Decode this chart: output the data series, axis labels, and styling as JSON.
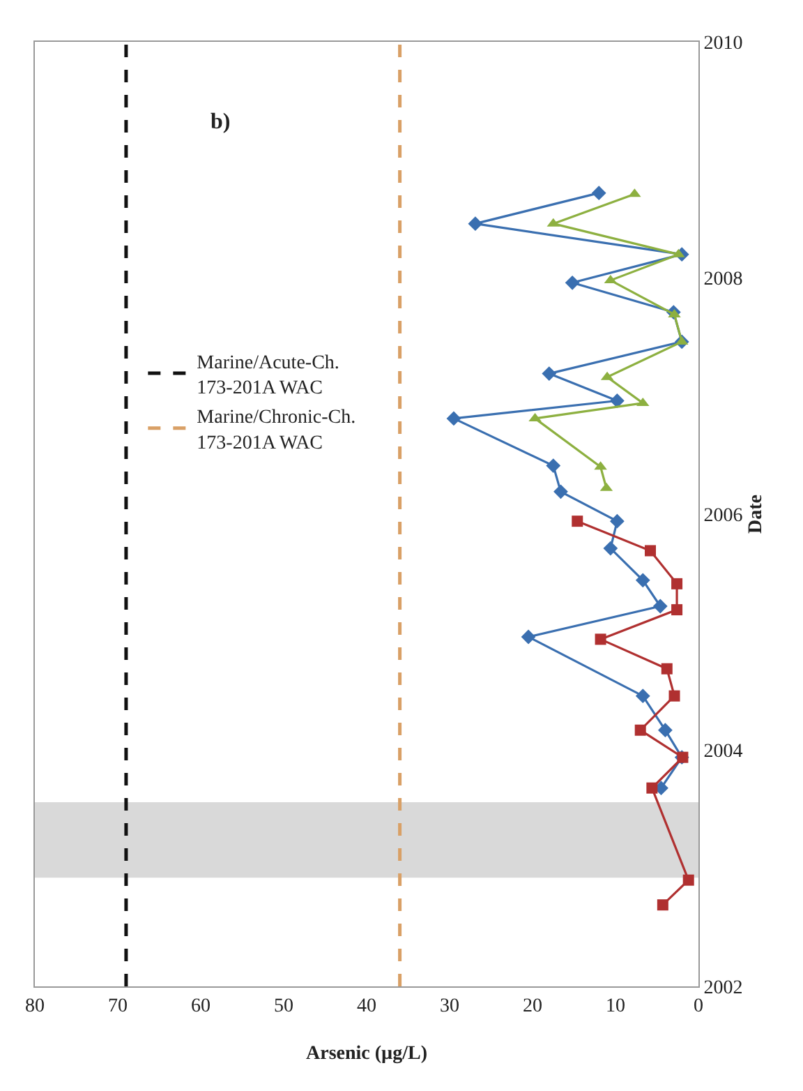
{
  "chart_data": {
    "type": "line",
    "xlabel": "Arsenic (µg/L)",
    "ylabel": "Date",
    "xlim": [
      80,
      0
    ],
    "xticks": [
      80,
      70,
      60,
      50,
      40,
      30,
      20,
      10,
      0
    ],
    "ylim": [
      2002,
      2010
    ],
    "yticks": [
      2002,
      2004,
      2006,
      2008,
      2010
    ],
    "grid": false,
    "legend": "left",
    "line_style": "solid",
    "annotations": [
      "b)"
    ],
    "ref_lines": [
      {
        "axis": "x",
        "value": 69,
        "label": "Marine/Acute-Ch.\n173-201A WAC",
        "color": "#111111",
        "line_style": "dashed"
      },
      {
        "axis": "x",
        "value": 36,
        "label": "Marine/Chronic-Ch.\n173-201A WAC",
        "color": "#d9a066",
        "line_style": "dashed"
      }
    ],
    "bands": [
      {
        "axis": "y",
        "from": 2002.92,
        "to": 2003.56,
        "color": "#d9d9d9"
      }
    ],
    "series": [
      {
        "color": "#3a6fb0",
        "marker": "diamond",
        "x": [
          4.5,
          2,
          4,
          6.7,
          20.5,
          4.6,
          6.7,
          10.6,
          9.8,
          16.6,
          17.5,
          29.5,
          9.8,
          18,
          2,
          3,
          15.2,
          2,
          26.9,
          12
        ],
        "values": [
          2003.68,
          2003.94,
          2004.17,
          2004.46,
          2004.96,
          2005.22,
          2005.44,
          2005.71,
          2005.94,
          2006.19,
          2006.41,
          2006.81,
          2006.96,
          2007.19,
          2007.46,
          2007.71,
          2007.96,
          2008.2,
          2008.46,
          2008.72
        ]
      },
      {
        "color": "#b03030",
        "marker": "square",
        "x": [
          4.3,
          1.2,
          5.6,
          1.9,
          7,
          2.9,
          3.8,
          11.8,
          2.6,
          2.6,
          5.8,
          14.6
        ],
        "values": [
          2002.69,
          2002.9,
          2003.68,
          2003.94,
          2004.17,
          2004.46,
          2004.69,
          2004.94,
          2005.19,
          2005.41,
          2005.69,
          2005.94
        ]
      },
      {
        "color": "#8db040",
        "marker": "triangle",
        "x": [
          11.1,
          11.8,
          19.7,
          6.7,
          11,
          2,
          2.9,
          10.6,
          2.4,
          17.5,
          7.7
        ],
        "values": [
          2006.22,
          2006.4,
          2006.81,
          2006.94,
          2007.16,
          2007.46,
          2007.69,
          2007.98,
          2008.2,
          2008.46,
          2008.71
        ]
      }
    ]
  }
}
